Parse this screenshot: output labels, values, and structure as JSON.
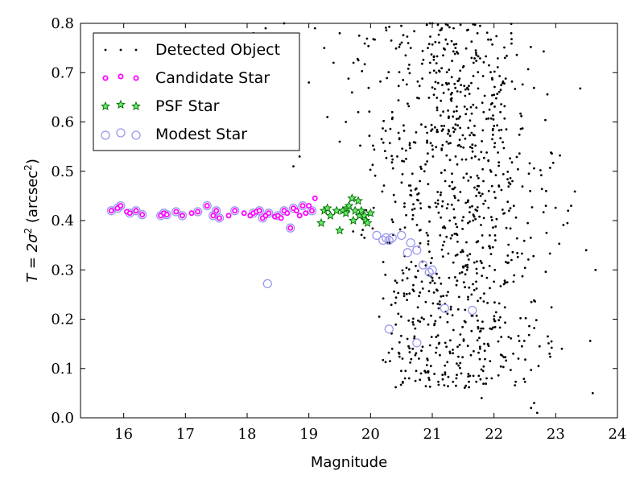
{
  "chart_data": {
    "type": "scatter",
    "xlabel": "Magnitude",
    "ylabel": "T = 2σ² (arcsec²)",
    "ylabel_parts": {
      "main": "T = 2σ",
      "sup1": "2",
      "paren_open": " (arcsec",
      "sup2": "2",
      "paren_close": ")"
    },
    "xlim": [
      15.3,
      24
    ],
    "ylim": [
      0,
      0.8
    ],
    "xticks": [
      16,
      17,
      18,
      19,
      20,
      21,
      22,
      23,
      24
    ],
    "yticks": [
      0.0,
      0.1,
      0.2,
      0.3,
      0.4,
      0.5,
      0.6,
      0.7,
      0.8
    ],
    "ytick_labels": [
      "0.0",
      "0.1",
      "0.2",
      "0.3",
      "0.4",
      "0.5",
      "0.6",
      "0.7",
      "0.8"
    ],
    "grid": false,
    "legend_position": "top-left",
    "legend": [
      {
        "label": "Detected Object",
        "series": "detected"
      },
      {
        "label": "Candidate Star",
        "series": "candidate"
      },
      {
        "label": "PSF Star",
        "series": "psf"
      },
      {
        "label": "Modest Star",
        "series": "modest"
      }
    ],
    "colors": {
      "detected": "#000000",
      "candidate": "#ff00ff",
      "psf": "#00aa00",
      "modest": "#9999ee"
    },
    "series": [
      {
        "name": "Detected Object",
        "key": "detected",
        "x": [],
        "y": []
      },
      {
        "name": "Candidate Star",
        "key": "candidate",
        "x": [
          15.8,
          15.9,
          15.95,
          16.05,
          16.1,
          16.2,
          16.3,
          16.6,
          16.65,
          16.7,
          16.85,
          16.95,
          17.1,
          17.2,
          17.35,
          17.45,
          17.5,
          17.55,
          17.7,
          17.8,
          17.95,
          18.05,
          18.1,
          18.15,
          18.2,
          18.25,
          18.3,
          18.35,
          18.45,
          18.5,
          18.55,
          18.6,
          18.65,
          18.7,
          18.75,
          18.8,
          18.85,
          18.9,
          18.95,
          19.0,
          19.05,
          19.1
        ],
        "y": [
          0.42,
          0.425,
          0.43,
          0.418,
          0.415,
          0.42,
          0.412,
          0.41,
          0.415,
          0.412,
          0.418,
          0.41,
          0.415,
          0.418,
          0.43,
          0.41,
          0.42,
          0.405,
          0.41,
          0.42,
          0.415,
          0.41,
          0.415,
          0.418,
          0.42,
          0.405,
          0.41,
          0.415,
          0.408,
          0.41,
          0.405,
          0.42,
          0.415,
          0.385,
          0.425,
          0.42,
          0.41,
          0.43,
          0.415,
          0.43,
          0.42,
          0.445
        ]
      },
      {
        "name": "PSF Star",
        "key": "psf",
        "x": [
          19.2,
          19.25,
          19.3,
          19.35,
          19.45,
          19.5,
          19.55,
          19.6,
          19.62,
          19.65,
          19.7,
          19.72,
          19.75,
          19.8,
          19.82,
          19.85,
          19.9,
          19.92,
          19.95,
          20.0
        ],
        "y": [
          0.395,
          0.42,
          0.425,
          0.41,
          0.42,
          0.38,
          0.42,
          0.415,
          0.425,
          0.43,
          0.445,
          0.4,
          0.42,
          0.44,
          0.41,
          0.42,
          0.41,
          0.4,
          0.395,
          0.415
        ]
      },
      {
        "name": "Modest Star",
        "key": "modest",
        "x": [
          15.8,
          15.9,
          15.95,
          16.1,
          16.2,
          16.3,
          16.6,
          16.65,
          16.7,
          16.85,
          16.95,
          17.2,
          17.35,
          17.45,
          17.5,
          17.55,
          17.8,
          18.1,
          18.2,
          18.25,
          18.35,
          18.5,
          18.6,
          18.7,
          18.75,
          18.9,
          19.05,
          18.33,
          20.1,
          20.2,
          20.25,
          20.3,
          20.35,
          20.5,
          20.6,
          20.65,
          20.75,
          20.85,
          20.95,
          21.0,
          21.2,
          21.65,
          20.3,
          20.75
        ],
        "y": [
          0.42,
          0.425,
          0.43,
          0.415,
          0.42,
          0.412,
          0.41,
          0.415,
          0.412,
          0.418,
          0.41,
          0.418,
          0.43,
          0.41,
          0.42,
          0.405,
          0.42,
          0.415,
          0.42,
          0.405,
          0.415,
          0.41,
          0.42,
          0.385,
          0.425,
          0.43,
          0.42,
          0.272,
          0.37,
          0.36,
          0.365,
          0.36,
          0.365,
          0.37,
          0.335,
          0.355,
          0.34,
          0.31,
          0.295,
          0.3,
          0.222,
          0.218,
          0.18,
          0.152
        ]
      }
    ]
  }
}
